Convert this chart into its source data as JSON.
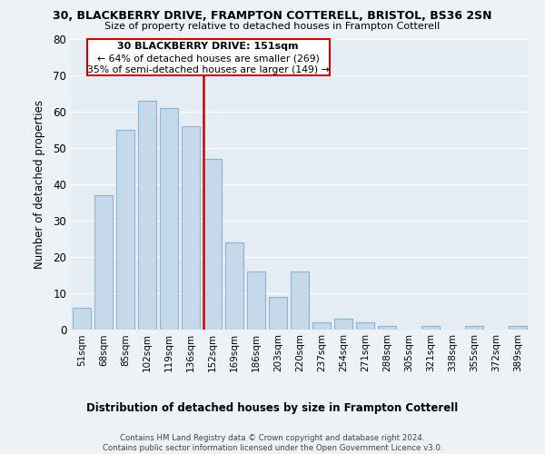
{
  "title": "30, BLACKBERRY DRIVE, FRAMPTON COTTERELL, BRISTOL, BS36 2SN",
  "subtitle": "Size of property relative to detached houses in Frampton Cotterell",
  "xlabel": "Distribution of detached houses by size in Frampton Cotterell",
  "ylabel": "Number of detached properties",
  "bar_labels": [
    "51sqm",
    "68sqm",
    "85sqm",
    "102sqm",
    "119sqm",
    "136sqm",
    "152sqm",
    "169sqm",
    "186sqm",
    "203sqm",
    "220sqm",
    "237sqm",
    "254sqm",
    "271sqm",
    "288sqm",
    "305sqm",
    "321sqm",
    "338sqm",
    "355sqm",
    "372sqm",
    "389sqm"
  ],
  "bar_values": [
    6,
    37,
    55,
    63,
    61,
    56,
    47,
    24,
    16,
    9,
    16,
    2,
    3,
    2,
    1,
    0,
    1,
    0,
    1,
    0,
    1
  ],
  "bar_color": "#c6d9ea",
  "bar_edge_color": "#8ab4d0",
  "vline_x_index": 6,
  "vline_color": "#cc0000",
  "annotation_title": "30 BLACKBERRY DRIVE: 151sqm",
  "annotation_line1": "← 64% of detached houses are smaller (269)",
  "annotation_line2": "35% of semi-detached houses are larger (149) →",
  "annotation_box_color": "#ffffff",
  "annotation_box_edge": "#cc0000",
  "ylim": [
    0,
    80
  ],
  "yticks": [
    0,
    10,
    20,
    30,
    40,
    50,
    60,
    70,
    80
  ],
  "footer_line1": "Contains HM Land Registry data © Crown copyright and database right 2024.",
  "footer_line2": "Contains public sector information licensed under the Open Government Licence v3.0.",
  "bg_color": "#edf2f7",
  "plot_bg_color": "#e4ecf4"
}
